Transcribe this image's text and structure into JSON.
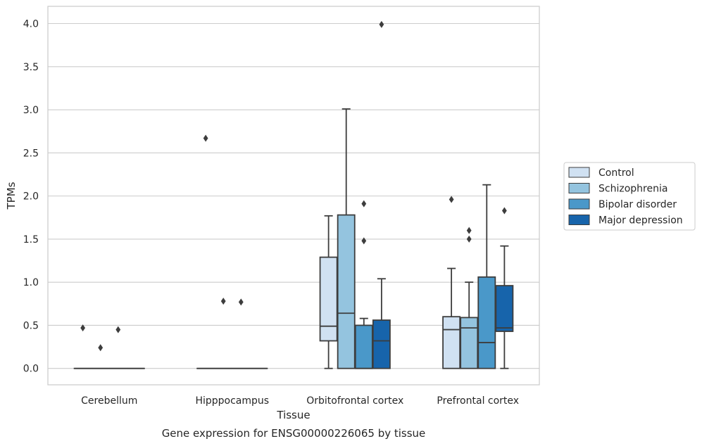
{
  "chart_data": {
    "type": "box",
    "title": "",
    "caption": "Gene expression for ENSG00000226065 by tissue",
    "xlabel": "Tissue",
    "ylabel": "TPMs",
    "ylim": [
      -0.19,
      4.2
    ],
    "yticks": [
      0.0,
      0.5,
      1.0,
      1.5,
      2.0,
      2.5,
      3.0,
      3.5,
      4.0
    ],
    "ytick_labels": [
      "0.0",
      "0.5",
      "1.0",
      "1.5",
      "2.0",
      "2.5",
      "3.0",
      "3.5",
      "4.0"
    ],
    "grid": "y",
    "legend_position": "right",
    "categories": [
      "Cerebellum",
      "Hipppocampus",
      "Orbitofrontal cortex",
      "Prefrontal cortex"
    ],
    "series": [
      {
        "name": "Control",
        "color": "#d0e1f2",
        "boxes": [
          {
            "min": 0.0,
            "q1": 0.0,
            "median": 0.0,
            "q3": 0.0,
            "max": 0.0,
            "outliers": [
              0.47
            ]
          },
          {
            "min": 0.0,
            "q1": 0.0,
            "median": 0.0,
            "q3": 0.0,
            "max": 0.0,
            "outliers": [
              2.67
            ]
          },
          {
            "min": 0.0,
            "q1": 0.32,
            "median": 0.49,
            "q3": 1.29,
            "max": 1.77,
            "outliers": []
          },
          {
            "min": 0.0,
            "q1": 0.0,
            "median": 0.45,
            "q3": 0.6,
            "max": 1.16,
            "outliers": [
              1.96
            ]
          }
        ]
      },
      {
        "name": "Schizophrenia",
        "color": "#94c4df",
        "boxes": [
          {
            "min": 0.0,
            "q1": 0.0,
            "median": 0.0,
            "q3": 0.0,
            "max": 0.0,
            "outliers": [
              0.24
            ]
          },
          {
            "min": 0.0,
            "q1": 0.0,
            "median": 0.0,
            "q3": 0.0,
            "max": 0.0,
            "outliers": [
              0.78
            ]
          },
          {
            "min": 0.0,
            "q1": 0.0,
            "median": 0.64,
            "q3": 1.78,
            "max": 3.01,
            "outliers": []
          },
          {
            "min": 0.0,
            "q1": 0.0,
            "median": 0.47,
            "q3": 0.59,
            "max": 1.0,
            "outliers": [
              1.5,
              1.6
            ]
          }
        ]
      },
      {
        "name": "Bipolar disorder",
        "color": "#4a98c9",
        "boxes": [
          {
            "min": 0.0,
            "q1": 0.0,
            "median": 0.0,
            "q3": 0.0,
            "max": 0.0,
            "outliers": [
              0.45
            ]
          },
          {
            "min": 0.0,
            "q1": 0.0,
            "median": 0.0,
            "q3": 0.0,
            "max": 0.0,
            "outliers": [
              0.77
            ]
          },
          {
            "min": 0.0,
            "q1": 0.0,
            "median": 0.0,
            "q3": 0.5,
            "max": 0.58,
            "outliers": [
              1.48,
              1.91
            ]
          },
          {
            "min": 0.0,
            "q1": 0.0,
            "median": 0.3,
            "q3": 1.06,
            "max": 2.13,
            "outliers": []
          }
        ]
      },
      {
        "name": "Major depression",
        "color": "#1764ab",
        "boxes": [
          {
            "min": 0.0,
            "q1": 0.0,
            "median": 0.0,
            "q3": 0.0,
            "max": 0.0,
            "outliers": []
          },
          {
            "min": 0.0,
            "q1": 0.0,
            "median": 0.0,
            "q3": 0.0,
            "max": 0.0,
            "outliers": []
          },
          {
            "min": 0.0,
            "q1": 0.0,
            "median": 0.32,
            "q3": 0.56,
            "max": 1.04,
            "outliers": [
              3.99
            ]
          },
          {
            "min": 0.0,
            "q1": 0.43,
            "median": 0.47,
            "q3": 0.96,
            "max": 1.42,
            "outliers": [
              1.83
            ]
          }
        ]
      }
    ]
  }
}
